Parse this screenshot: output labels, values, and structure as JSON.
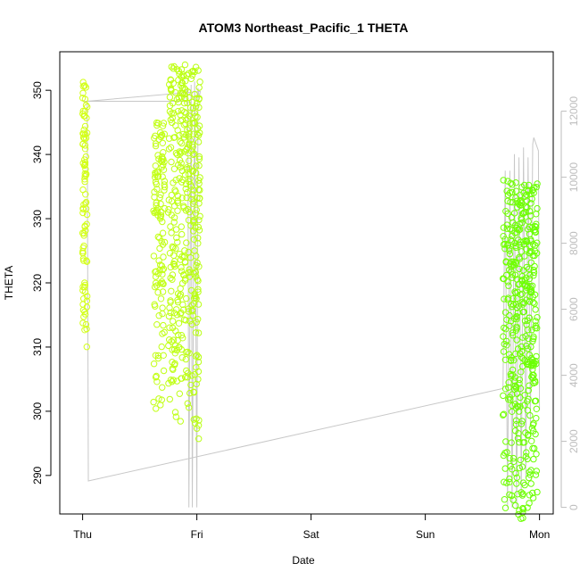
{
  "chart_data": {
    "type": "scatter",
    "title": "ATOM3 Northeast_Pacific_1 THETA",
    "xlabel": "Date",
    "ylabel": "THETA",
    "x_ticks": [
      "Thu",
      "Fri",
      "Sat",
      "Sun",
      "Mon"
    ],
    "xlim_days": [
      -0.2,
      4.12
    ],
    "ylim": [
      284,
      356
    ],
    "y_ticks": [
      290,
      300,
      310,
      320,
      330,
      340,
      350
    ],
    "y2lim": [
      -200,
      13800
    ],
    "y2_ticks": [
      0,
      2000,
      4000,
      6000,
      8000,
      10000,
      12000
    ],
    "grid": false,
    "series": [
      {
        "role": "theta",
        "color_start": "#d9ff1a",
        "color_end": "#66ff00",
        "segments": [
          {
            "x_start": 0.0,
            "x_end": 0.04,
            "theta_top": 352,
            "theta_bottom": 309,
            "count": 90
          },
          {
            "x_start": 0.62,
            "x_end": 0.72,
            "theta_top": 345,
            "theta_bottom": 299,
            "count": 120
          },
          {
            "x_start": 0.75,
            "x_end": 1.03,
            "theta_top": 354,
            "theta_bottom": 295,
            "count": 380
          },
          {
            "x_start": 3.68,
            "x_end": 3.98,
            "theta_top": 336,
            "theta_bottom": 283,
            "count": 420
          }
        ]
      },
      {
        "role": "altitude",
        "color": "#c8c8c8",
        "path": [
          [
            0.0,
            12300
          ],
          [
            0.88,
            12300
          ],
          [
            0.9,
            12500
          ],
          [
            0.92,
            12700
          ],
          [
            0.93,
            0
          ],
          [
            0.95,
            12800
          ],
          [
            0.96,
            0
          ],
          [
            0.98,
            12900
          ],
          [
            1.0,
            0
          ],
          [
            1.01,
            12700
          ],
          [
            1.02,
            12400
          ],
          [
            1.03,
            12600
          ],
          [
            0.04,
            12300
          ],
          [
            0.05,
            800
          ],
          [
            3.68,
            3600
          ],
          [
            3.7,
            10200
          ],
          [
            3.72,
            0
          ],
          [
            3.74,
            10200
          ],
          [
            3.76,
            0
          ],
          [
            3.78,
            10700
          ],
          [
            3.8,
            0
          ],
          [
            3.82,
            10600
          ],
          [
            3.84,
            300
          ],
          [
            3.86,
            10900
          ],
          [
            3.88,
            900
          ],
          [
            3.9,
            10600
          ],
          [
            3.92,
            2500
          ],
          [
            3.94,
            11000
          ],
          [
            3.95,
            11200
          ],
          [
            3.99,
            10800
          ],
          [
            4.0,
            3000
          ]
        ]
      }
    ]
  }
}
